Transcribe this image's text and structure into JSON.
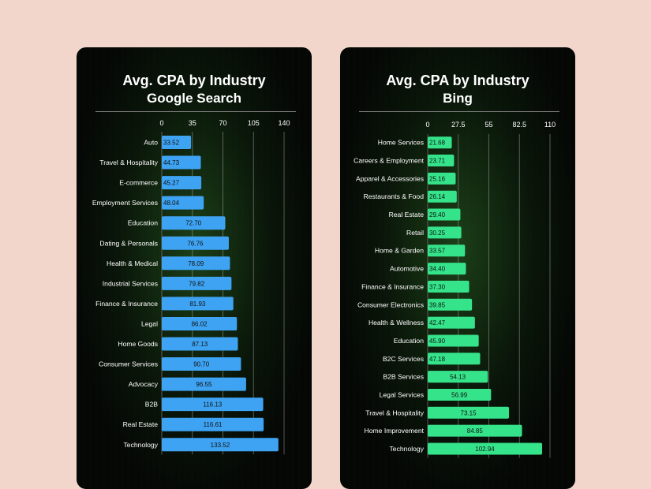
{
  "chart_data": [
    {
      "type": "bar",
      "orientation": "horizontal",
      "title": "Avg. CPA by Industry",
      "subtitle": "Google Search",
      "xlim": [
        0,
        140
      ],
      "ticks": [
        "0",
        "35",
        "70",
        "105",
        "140"
      ],
      "grid": true,
      "bar_color": "#3ea3f2",
      "categories": [
        "Auto",
        "Travel & Hospitality",
        "E-commerce",
        "Employment Services",
        "Education",
        "Dating & Personals",
        "Health & Medical",
        "Industrial Services",
        "Finance & Insurance",
        "Legal",
        "Home Goods",
        "Consumer Services",
        "Advocacy",
        "B2B",
        "Real Estate",
        "Technology"
      ],
      "values": [
        33.52,
        44.73,
        45.27,
        48.04,
        72.7,
        76.76,
        78.09,
        79.82,
        81.93,
        86.02,
        87.13,
        90.7,
        96.55,
        116.13,
        116.61,
        133.52
      ],
      "labels": [
        "33.52",
        "44.73",
        "45.27",
        "48.04",
        "72.70",
        "76.76",
        "78.09",
        "79.82",
        "81.93",
        "86.02",
        "87.13",
        "90.70",
        "96.55",
        "116.13",
        "116.61",
        "133.52"
      ]
    },
    {
      "type": "bar",
      "orientation": "horizontal",
      "title": "Avg. CPA by Industry",
      "subtitle": "Bing",
      "xlim": [
        0,
        110
      ],
      "ticks": [
        "0",
        "27.5",
        "55",
        "82.5",
        "110"
      ],
      "grid": true,
      "bar_color": "#35e38a",
      "categories": [
        "Home Services",
        "Careers & Employment",
        "Apparel & Accessories",
        "Restaurants & Food",
        "Real Estate",
        "Retail",
        "Home & Garden",
        "Automotive",
        "Finance & Insurance",
        "Consumer Electronics",
        "Health & Wellness",
        "Education",
        "B2C Services",
        "B2B Services",
        "Legal Services",
        "Travel & Hospitality",
        "Home Improvement",
        "Technology"
      ],
      "values": [
        21.68,
        23.71,
        25.16,
        26.14,
        29.4,
        30.25,
        33.57,
        34.4,
        37.3,
        39.85,
        42.47,
        45.9,
        47.18,
        54.13,
        56.99,
        73.15,
        84.85,
        102.94
      ],
      "labels": [
        "21.68",
        "23.71",
        "25.16",
        "26.14",
        "29.40",
        "30.25",
        "33.57",
        "34.40",
        "37.30",
        "39.85",
        "42.47",
        "45.90",
        "47.18",
        "54.13",
        "56.99",
        "73.15",
        "84.85",
        "102.94"
      ]
    }
  ]
}
